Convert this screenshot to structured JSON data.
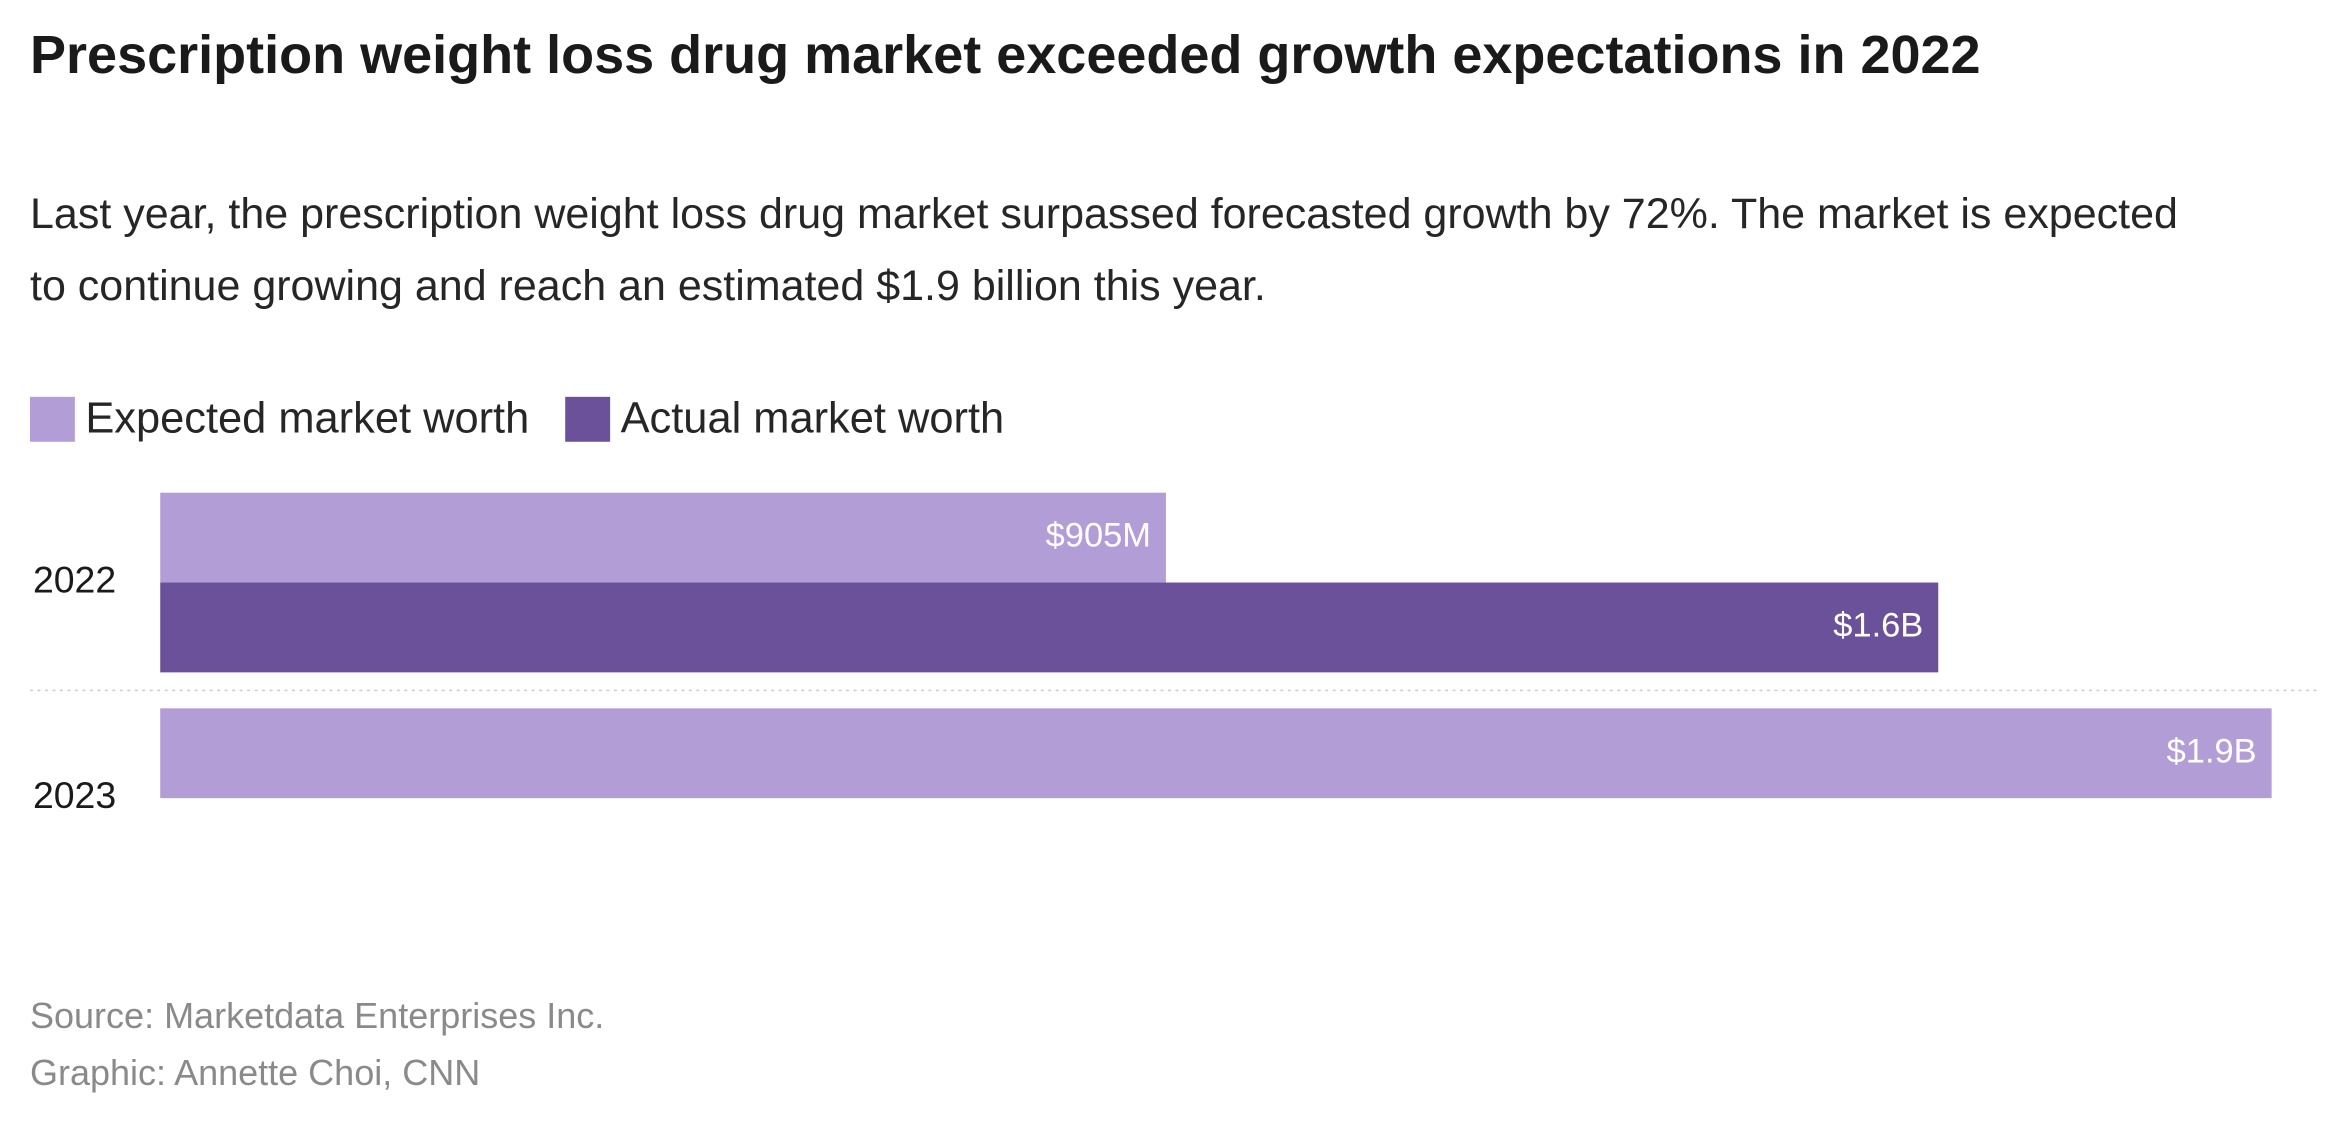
{
  "chart_data": {
    "type": "bar",
    "orientation": "horizontal",
    "title": "Prescription weight loss drug market exceeded growth expectations in 2022",
    "subtitle": "Last year, the prescription weight loss drug market surpassed forecasted growth by 72%. The market is expected to continue growing and reach an estimated $1.9 billion this year.",
    "categories": [
      "2022",
      "2023"
    ],
    "series": [
      {
        "name": "Expected market worth",
        "color": "#b39dd6",
        "values": [
          905000000,
          1900000000
        ],
        "value_labels": [
          "$905M",
          "$1.9B"
        ]
      },
      {
        "name": "Actual market worth",
        "color": "#6b519a",
        "values": [
          1600000000,
          null
        ],
        "value_labels": [
          "$1.6B",
          null
        ]
      }
    ],
    "legend": "top-left",
    "source": "Source: Marketdata Enterprises Inc.",
    "credit": "Graphic: Annette Choi, CNN"
  }
}
